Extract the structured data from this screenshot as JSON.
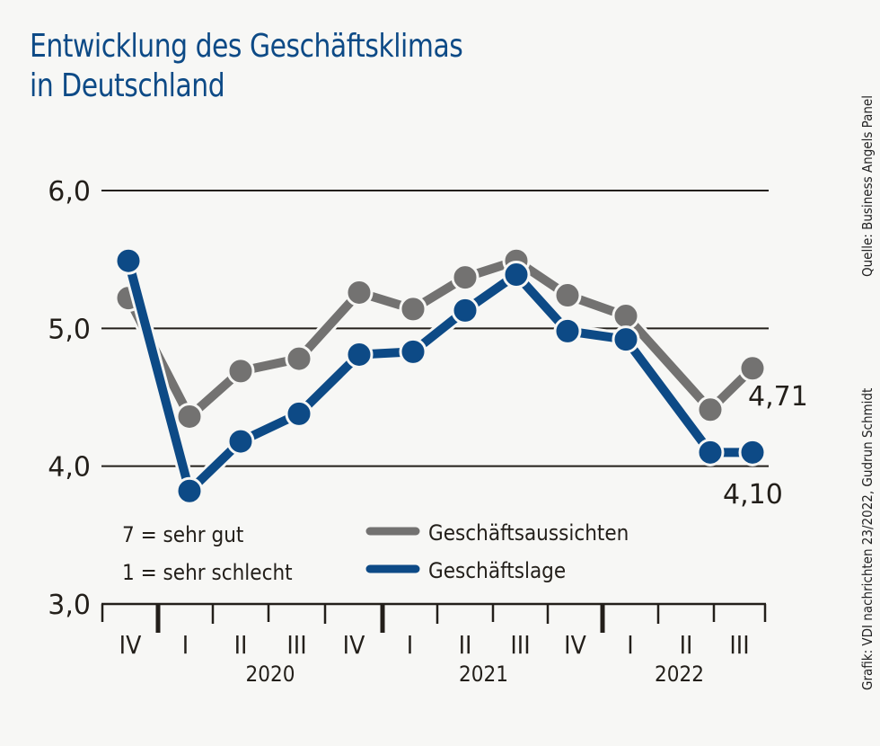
{
  "title_line1": "Entwicklung des Geschäftsklimas",
  "title_line2": "in Deutschland",
  "source": "Quelle: Business Angels Panel",
  "credit": "Grafik: VDI nachrichten 23/2022, Gudrun Schmidt",
  "colors": {
    "title": "#0d4a86",
    "aussichten": "#737271",
    "lage": "#0d4a86",
    "grid": "#231f1a"
  },
  "chart_data": {
    "type": "line",
    "title": "Entwicklung des Geschäftsklimas in Deutschland",
    "xlabel": "",
    "ylabel": "",
    "ylim": [
      3.0,
      6.0
    ],
    "yticks": [
      3.0,
      4.0,
      5.0,
      6.0
    ],
    "ytick_labels": [
      "3,0",
      "4,0",
      "5,0",
      "6,0"
    ],
    "grid": true,
    "categories": [
      "IV",
      "I",
      "II",
      "III",
      "IV",
      "I",
      "II",
      "III",
      "IV",
      "I",
      "II",
      "III"
    ],
    "years": [
      {
        "label": "2020",
        "start": 1,
        "end": 4
      },
      {
        "label": "2021",
        "start": 5,
        "end": 8
      },
      {
        "label": "2022",
        "start": 9,
        "end": 11
      }
    ],
    "series": [
      {
        "name": "Geschäftsaussichten",
        "color": "#737271",
        "values": [
          5.22,
          4.36,
          4.69,
          4.78,
          5.26,
          5.14,
          5.37,
          5.49,
          5.24,
          5.09,
          4.41,
          4.71
        ]
      },
      {
        "name": "Geschäftslage",
        "color": "#0d4a86",
        "values": [
          5.49,
          3.82,
          4.18,
          4.38,
          4.81,
          4.83,
          5.13,
          5.39,
          4.98,
          4.92,
          4.1,
          4.1
        ]
      }
    ],
    "annotations": [
      {
        "series": "Geschäftsaussichten",
        "index": 11,
        "text": "4,71"
      },
      {
        "series": "Geschäftslage",
        "index": 11,
        "text": "4,10"
      }
    ],
    "scale_note": [
      "7 = sehr gut",
      "1 = sehr schlecht"
    ],
    "legend": [
      "Geschäftsaussichten",
      "Geschäftslage"
    ],
    "legend_position": "bottom-center"
  }
}
